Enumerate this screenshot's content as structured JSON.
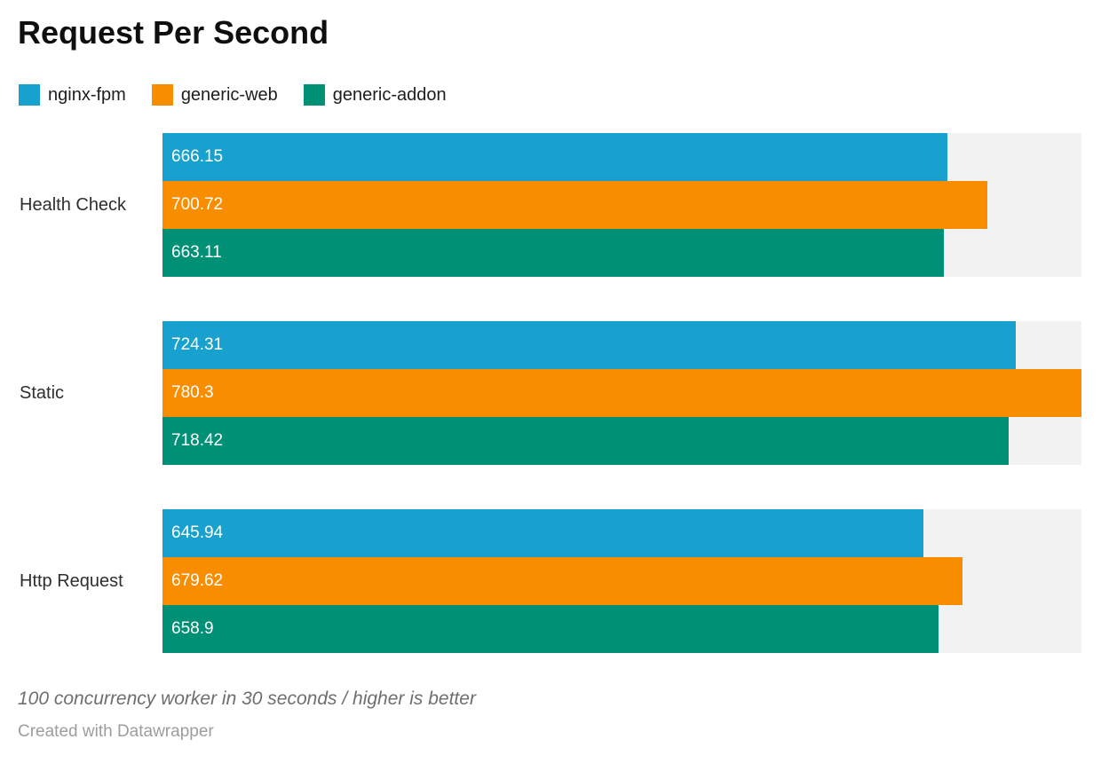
{
  "header": {
    "title": "Request Per Second"
  },
  "footer": {
    "footnote": "100 concurrency worker in 30 seconds / higher is better",
    "credit": "Created with Datawrapper"
  },
  "chart_data": {
    "type": "bar",
    "orientation": "horizontal",
    "title": "Request Per Second",
    "categories": [
      "Health Check",
      "Static",
      "Http Request"
    ],
    "series": [
      {
        "name": "nginx-fpm",
        "color": "#18a0ce",
        "values": [
          666.15,
          724.31,
          645.94
        ]
      },
      {
        "name": "generic-web",
        "color": "#f98d00",
        "values": [
          700.72,
          780.3,
          679.62
        ]
      },
      {
        "name": "generic-addon",
        "color": "#009076",
        "values": [
          663.11,
          718.42,
          658.9
        ]
      }
    ],
    "xlim": [
      0,
      780.3
    ],
    "xlabel": "",
    "ylabel": "",
    "grid": false,
    "legend_position": "top",
    "track_color": "#f2f2f2",
    "value_label_color": "#ffffff",
    "footnote": "100 concurrency worker in 30 seconds / higher is better",
    "credit": "Created with Datawrapper"
  }
}
